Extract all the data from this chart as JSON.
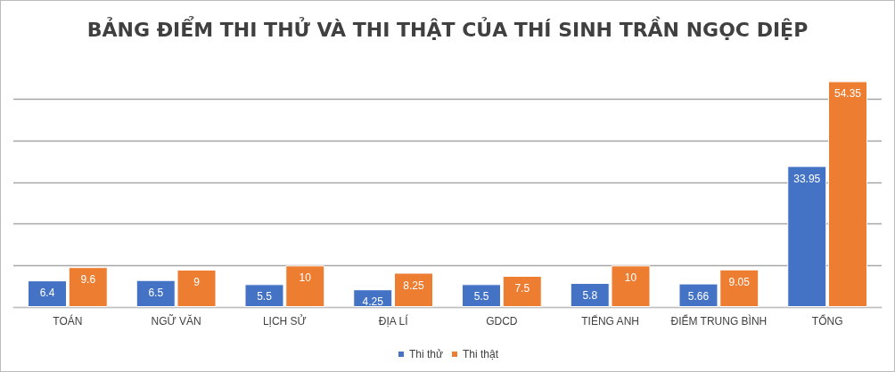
{
  "chart_data": {
    "type": "bar",
    "title": "BẢNG ĐIỂM THI THỬ VÀ THI THẬT CỦA THÍ SINH TRẦN NGỌC DIỆP",
    "categories": [
      "TOÁN",
      "NGỮ VĂN",
      "LỊCH SỬ",
      "ĐỊA LÍ",
      "GDCD",
      "TIẾNG ANH",
      "ĐIỂM TRUNG BÌNH",
      "TỔNG"
    ],
    "series": [
      {
        "name": "Thi thử",
        "color": "#4472c4",
        "values": [
          6.4,
          6.5,
          5.5,
          4.25,
          5.5,
          5.8,
          5.66,
          33.95
        ]
      },
      {
        "name": "Thi thật",
        "color": "#ed7d31",
        "values": [
          9.6,
          9,
          10,
          8.25,
          7.5,
          10,
          9.05,
          54.35
        ]
      }
    ],
    "yticks": [
      {
        "value": 0,
        "label": null
      },
      {
        "value": 10,
        "label": null
      },
      {
        "value": 20,
        "label": null
      },
      {
        "value": 30,
        "label": null
      },
      {
        "value": 40,
        "label": null
      },
      {
        "value": 50,
        "label": null
      }
    ],
    "tick_labels": "x",
    "grid": "y",
    "legend": "bottom",
    "data_labels": true
  }
}
